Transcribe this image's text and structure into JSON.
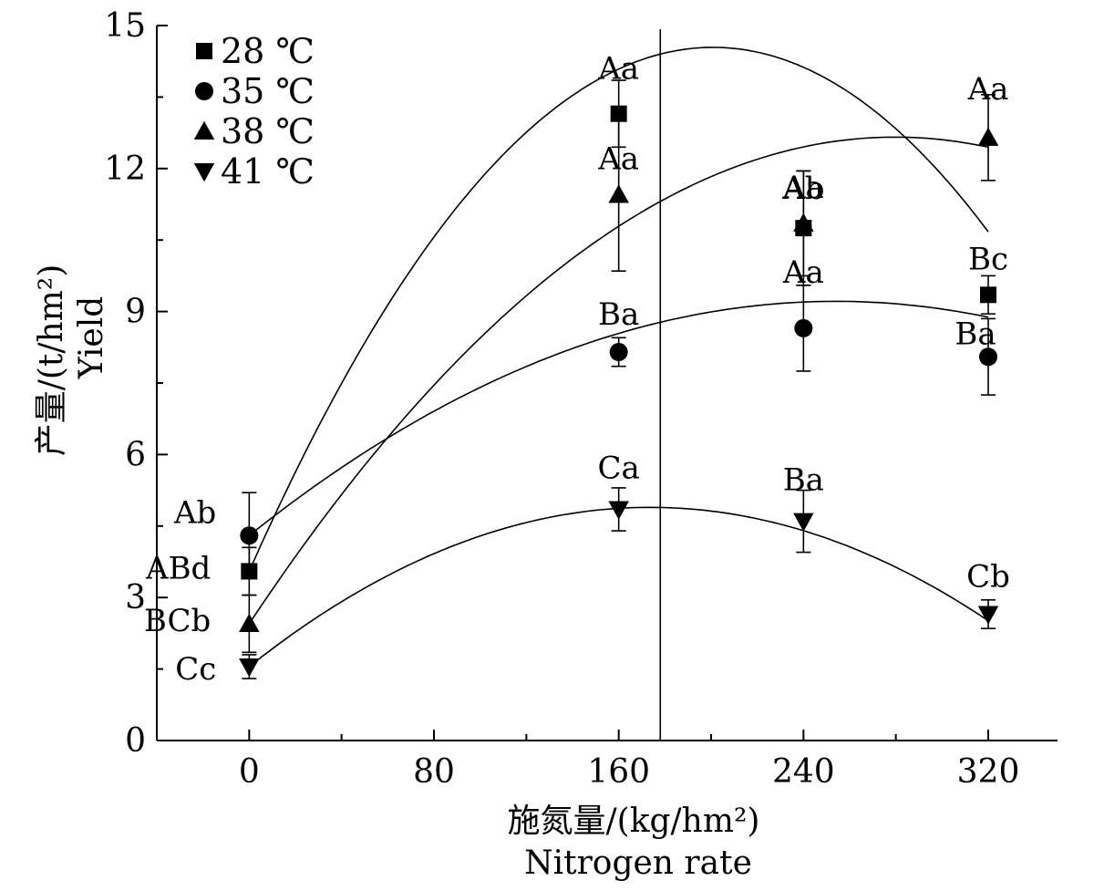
{
  "chart_data": {
    "type": "scatter",
    "xlabel": "施氮量/(kg/hm²)",
    "xlabel_en": "Nitrogen rate",
    "ylabel": "产量/(t/hm²)",
    "ylabel_en": "Yield",
    "xlim": [
      -40,
      350
    ],
    "ylim": [
      0,
      15
    ],
    "x_ticks": [
      0,
      80,
      160,
      240,
      320
    ],
    "y_ticks": [
      0,
      3,
      6,
      9,
      12,
      15
    ],
    "x_minor_ticks": [
      -40,
      40,
      120,
      200,
      280
    ],
    "grid": false,
    "legend_placement": "top-left",
    "vertical_reference_line_x": 178,
    "series": [
      {
        "name": "28 ℃",
        "marker": "square",
        "x": [
          0,
          160,
          240,
          320
        ],
        "y": [
          3.55,
          13.15,
          10.75,
          9.35
        ],
        "err": [
          0.5,
          0.7,
          1.2,
          0.4
        ],
        "labels": [
          "ABd",
          "Aa",
          "Ab",
          "Bc"
        ],
        "fit": [
          3.55,
          0.10946,
          -0.0002725
        ]
      },
      {
        "name": "35 ℃",
        "marker": "circle",
        "x": [
          0,
          160,
          240,
          320
        ],
        "y": [
          4.3,
          8.15,
          8.65,
          8.05
        ],
        "err": [
          0.9,
          0.3,
          0.9,
          0.8
        ],
        "labels": [
          "Ab",
          "Ba",
          "Aa",
          "Ba"
        ],
        "fit": [
          4.3,
          0.0387,
          -7.62e-05
        ]
      },
      {
        "name": "38 ℃",
        "marker": "triangle-up",
        "x": [
          0,
          160,
          240,
          320
        ],
        "y": [
          2.45,
          11.45,
          10.85,
          12.65
        ],
        "err": [
          0.6,
          1.6,
          1.1,
          0.9
        ],
        "labels": [
          "BCb",
          "Aa",
          "Aa",
          "Aa"
        ],
        "fit": [
          2.45,
          0.073,
          -0.0001305
        ]
      },
      {
        "name": "41 ℃",
        "marker": "triangle-down",
        "x": [
          0,
          160,
          240,
          320
        ],
        "y": [
          1.55,
          4.85,
          4.6,
          2.65
        ],
        "err": [
          0.25,
          0.45,
          0.65,
          0.3
        ],
        "labels": [
          "Cc",
          "Ca",
          "Ba",
          "Cb"
        ],
        "fit": [
          1.55,
          0.0385,
          -0.0001109
        ]
      }
    ]
  }
}
